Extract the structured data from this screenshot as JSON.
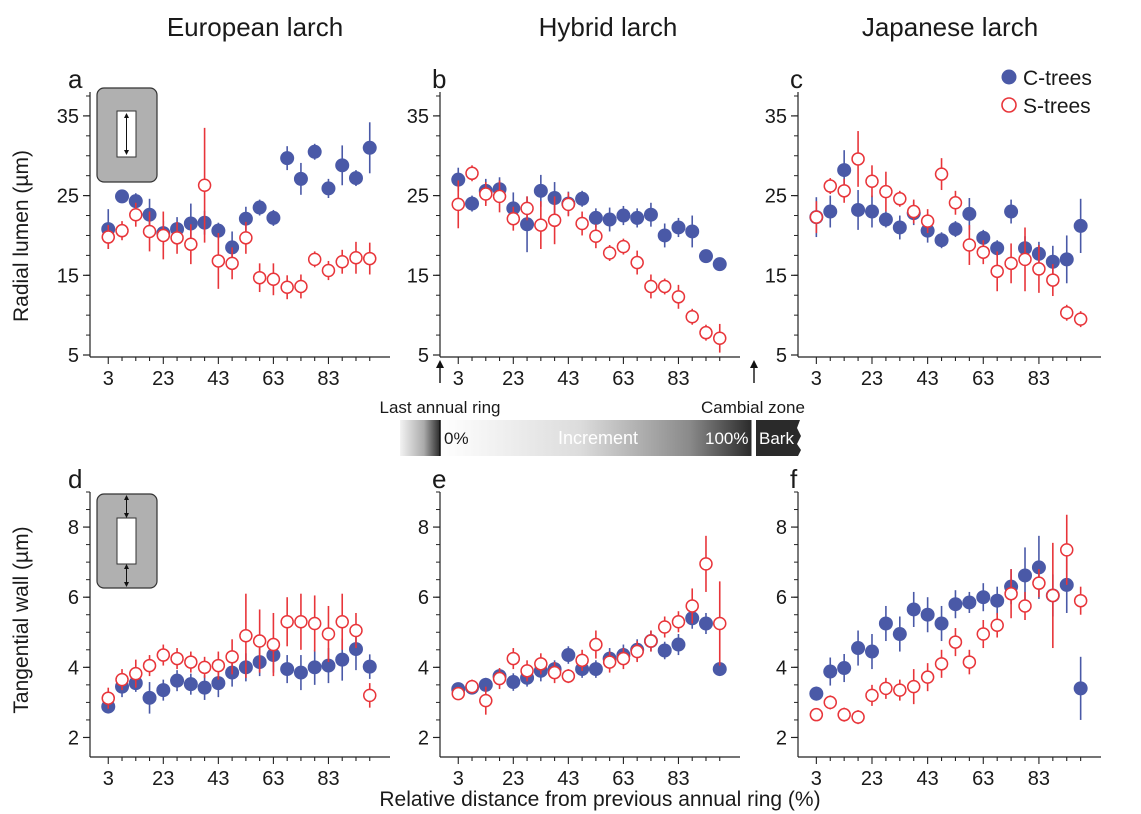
{
  "figure": {
    "column_titles": [
      "European larch",
      "Hybrid larch",
      "Japanese larch"
    ],
    "panel_letters": [
      "a",
      "b",
      "c",
      "d",
      "e",
      "f"
    ],
    "row_labels": [
      "Radial lumen  (µm)",
      "Tangential wall  (µm)"
    ],
    "x_axis_label": "Relative distance from previous annual ring (%)",
    "legend": [
      {
        "label": "C-trees",
        "marker": "filled-circle",
        "color": "#4a59a7"
      },
      {
        "label": "S-trees",
        "marker": "open-circle",
        "color": "#e8353a"
      }
    ],
    "schematic": {
      "left_label": "Last annual ring",
      "right_label": "Cambial zone",
      "start_label": "0%",
      "mid_label": "Increment",
      "end_label": "100%",
      "bark_label": "Bark"
    }
  },
  "colors": {
    "c_trees": "#4a59a7",
    "s_trees": "#e8353a",
    "axis": "#222222"
  },
  "chart_data": [
    {
      "type": "scatter",
      "panel": "a",
      "title": "European larch",
      "ylabel": "Radial lumen  (µm)",
      "xlabel": "Relative distance from previous annual ring (%)",
      "ylim": [
        5,
        38
      ],
      "yticks": [
        5,
        15,
        25,
        35
      ],
      "xticks": [
        3,
        23,
        43,
        63,
        83
      ],
      "xlim": [
        0,
        101
      ],
      "series": [
        {
          "name": "C-trees",
          "x": [
            3,
            8,
            13,
            18,
            23,
            28,
            33,
            38,
            43,
            48,
            53,
            58,
            63,
            68,
            73,
            78,
            83,
            88,
            93,
            98
          ],
          "y": [
            20.8,
            24.9,
            24.3,
            22.6,
            20.3,
            20.8,
            21.5,
            21.6,
            20.6,
            18.5,
            22.1,
            23.5,
            22.2,
            29.7,
            27.1,
            30.5,
            25.9,
            28.8,
            27.2,
            31.0
          ],
          "err": [
            2.5,
            0.8,
            1.0,
            2.0,
            1.5,
            1.5,
            2.5,
            1.5,
            1.0,
            2.0,
            1.5,
            1.0,
            1.0,
            1.5,
            2.0,
            1.0,
            1.2,
            2.5,
            1.0,
            3.2
          ]
        },
        {
          "name": "S-trees",
          "x": [
            3,
            8,
            13,
            18,
            23,
            28,
            33,
            38,
            43,
            48,
            53,
            58,
            63,
            68,
            73,
            78,
            83,
            88,
            93,
            98
          ],
          "y": [
            19.8,
            20.6,
            22.6,
            20.5,
            20.0,
            19.7,
            18.9,
            26.3,
            16.8,
            16.5,
            19.7,
            14.7,
            14.5,
            13.5,
            13.6,
            17.0,
            15.6,
            16.7,
            17.2,
            17.1
          ],
          "err": [
            1.5,
            1.2,
            1.5,
            2.5,
            3.0,
            2.0,
            2.5,
            7.2,
            3.5,
            2.0,
            2.0,
            1.8,
            2.0,
            1.5,
            1.5,
            1.0,
            1.2,
            1.5,
            2.0,
            2.0
          ]
        }
      ]
    },
    {
      "type": "scatter",
      "panel": "b",
      "title": "Hybrid larch",
      "ylabel": "",
      "xlabel": "Relative distance from previous annual ring (%)",
      "ylim": [
        5,
        38
      ],
      "yticks": [
        5,
        15,
        25,
        35
      ],
      "xticks": [
        3,
        23,
        43,
        63,
        83
      ],
      "xlim": [
        0,
        101
      ],
      "series": [
        {
          "name": "C-trees",
          "x": [
            3,
            8,
            13,
            18,
            23,
            28,
            33,
            38,
            43,
            48,
            53,
            58,
            63,
            68,
            73,
            78,
            83,
            88,
            93,
            98
          ],
          "y": [
            27.0,
            24.0,
            25.6,
            25.8,
            23.4,
            21.4,
            25.6,
            24.7,
            24.0,
            24.6,
            22.2,
            22.0,
            22.5,
            22.2,
            22.6,
            20.0,
            21.0,
            20.5,
            17.4,
            16.4
          ],
          "err": [
            1.5,
            1.0,
            1.5,
            1.5,
            2.0,
            3.5,
            2.0,
            2.0,
            1.5,
            1.0,
            1.2,
            1.5,
            1.2,
            1.2,
            1.5,
            1.5,
            1.2,
            2.0,
            0.6,
            0.6
          ]
        },
        {
          "name": "S-trees",
          "x": [
            3,
            8,
            13,
            18,
            23,
            28,
            33,
            38,
            43,
            48,
            53,
            58,
            63,
            68,
            73,
            78,
            83,
            88,
            93,
            98
          ],
          "y": [
            23.9,
            27.8,
            25.2,
            24.9,
            22.1,
            23.4,
            21.3,
            21.9,
            23.9,
            21.5,
            19.9,
            17.8,
            18.6,
            16.6,
            13.6,
            13.6,
            12.3,
            9.8,
            7.8,
            7.1
          ],
          "err": [
            3.0,
            1.0,
            1.5,
            2.0,
            1.5,
            1.5,
            3.0,
            3.0,
            1.5,
            1.5,
            1.5,
            1.0,
            1.0,
            1.5,
            1.5,
            1.0,
            1.5,
            1.0,
            1.0,
            1.8
          ]
        }
      ]
    },
    {
      "type": "scatter",
      "panel": "c",
      "title": "Japanese larch",
      "ylabel": "",
      "xlabel": "Relative distance from previous annual ring (%)",
      "ylim": [
        5,
        38
      ],
      "yticks": [
        5,
        15,
        25,
        35
      ],
      "xticks": [
        3,
        23,
        43,
        63,
        83
      ],
      "xlim": [
        0,
        101
      ],
      "series": [
        {
          "name": "C-trees",
          "x": [
            3,
            8,
            13,
            18,
            23,
            28,
            33,
            38,
            43,
            48,
            53,
            58,
            63,
            68,
            73,
            78,
            83,
            88,
            93,
            98
          ],
          "y": [
            22.3,
            23.0,
            28.2,
            23.2,
            23.0,
            22.0,
            21.0,
            22.8,
            20.6,
            19.4,
            20.8,
            22.7,
            19.7,
            18.4,
            23.0,
            18.4,
            17.7,
            16.7,
            17.0,
            21.2
          ],
          "err": [
            2.5,
            2.0,
            2.5,
            2.5,
            2.0,
            1.0,
            1.5,
            1.5,
            1.5,
            1.0,
            1.0,
            2.0,
            1.0,
            1.0,
            1.5,
            1.5,
            1.5,
            2.0,
            3.0,
            3.4
          ]
        },
        {
          "name": "S-trees",
          "x": [
            3,
            8,
            13,
            18,
            23,
            28,
            33,
            38,
            43,
            48,
            53,
            58,
            63,
            68,
            73,
            78,
            83,
            88,
            93,
            98
          ],
          "y": [
            22.3,
            26.2,
            25.6,
            29.6,
            26.8,
            25.5,
            24.6,
            23.0,
            21.8,
            27.7,
            24.1,
            18.8,
            17.9,
            15.5,
            16.5,
            17.0,
            15.8,
            14.4,
            10.3,
            9.5
          ],
          "err": [
            2.0,
            1.0,
            1.5,
            3.5,
            2.0,
            2.5,
            1.0,
            1.5,
            1.5,
            2.0,
            1.5,
            2.5,
            1.5,
            2.5,
            2.5,
            4.0,
            3.0,
            2.0,
            1.0,
            1.0
          ]
        }
      ]
    },
    {
      "type": "scatter",
      "panel": "d",
      "title": "European larch",
      "ylabel": "Tangential wall  (µm)",
      "xlabel": "Relative distance from previous annual ring (%)",
      "ylim": [
        1.5,
        9.0
      ],
      "yticks": [
        2,
        4,
        6,
        8
      ],
      "xticks": [
        3,
        23,
        43,
        63,
        83
      ],
      "xlim": [
        0,
        101
      ],
      "series": [
        {
          "name": "C-trees",
          "x": [
            3,
            8,
            13,
            18,
            23,
            28,
            33,
            38,
            43,
            48,
            53,
            58,
            63,
            68,
            73,
            78,
            83,
            88,
            93,
            98
          ],
          "y": [
            2.88,
            3.45,
            3.55,
            3.13,
            3.35,
            3.62,
            3.52,
            3.42,
            3.55,
            3.85,
            4.0,
            4.15,
            4.35,
            3.95,
            3.85,
            4.0,
            4.05,
            4.22,
            4.52,
            4.02
          ],
          "err": [
            0.1,
            0.3,
            0.25,
            0.45,
            0.3,
            0.3,
            0.3,
            0.35,
            0.4,
            0.4,
            0.4,
            0.4,
            0.5,
            0.4,
            0.5,
            0.5,
            0.5,
            0.6,
            0.6,
            0.35
          ]
        },
        {
          "name": "S-trees",
          "x": [
            3,
            8,
            13,
            18,
            23,
            28,
            33,
            38,
            43,
            48,
            53,
            58,
            63,
            68,
            73,
            78,
            83,
            88,
            93,
            98
          ],
          "y": [
            3.12,
            3.65,
            3.82,
            4.05,
            4.35,
            4.25,
            4.15,
            4.0,
            4.05,
            4.3,
            4.9,
            4.75,
            4.65,
            5.3,
            5.3,
            5.25,
            4.95,
            5.3,
            5.05,
            3.2
          ],
          "err": [
            0.3,
            0.3,
            0.4,
            0.3,
            0.3,
            0.3,
            0.3,
            0.3,
            0.4,
            0.5,
            1.2,
            0.9,
            0.9,
            0.7,
            0.8,
            0.8,
            0.8,
            0.8,
            0.5,
            0.35
          ]
        }
      ]
    },
    {
      "type": "scatter",
      "panel": "e",
      "title": "Hybrid larch",
      "ylabel": "",
      "xlabel": "Relative distance from previous annual ring (%)",
      "ylim": [
        1.5,
        9.0
      ],
      "yticks": [
        2,
        4,
        6,
        8
      ],
      "xticks": [
        3,
        23,
        43,
        63,
        83
      ],
      "xlim": [
        0,
        101
      ],
      "series": [
        {
          "name": "C-trees",
          "x": [
            3,
            8,
            13,
            18,
            23,
            28,
            33,
            38,
            43,
            48,
            53,
            58,
            63,
            68,
            73,
            78,
            83,
            88,
            93,
            98
          ],
          "y": [
            3.38,
            3.42,
            3.5,
            3.75,
            3.58,
            3.7,
            3.9,
            3.95,
            4.35,
            3.95,
            3.95,
            4.25,
            4.35,
            4.5,
            4.75,
            4.48,
            4.65,
            5.4,
            5.25,
            3.95
          ],
          "err": [
            0.1,
            0.1,
            0.2,
            0.2,
            0.25,
            0.25,
            0.3,
            0.25,
            0.25,
            0.25,
            0.25,
            0.3,
            0.3,
            0.3,
            0.3,
            0.25,
            0.3,
            0.3,
            0.3,
            0.15
          ]
        },
        {
          "name": "S-trees",
          "x": [
            3,
            8,
            13,
            18,
            23,
            28,
            33,
            38,
            43,
            48,
            53,
            58,
            63,
            68,
            73,
            78,
            83,
            88,
            93,
            98
          ],
          "y": [
            3.25,
            3.45,
            3.05,
            3.68,
            4.25,
            3.9,
            4.1,
            3.85,
            3.75,
            4.2,
            4.65,
            4.15,
            4.25,
            4.45,
            4.75,
            5.15,
            5.3,
            5.75,
            6.95,
            5.25
          ],
          "err": [
            0.15,
            0.2,
            0.4,
            0.3,
            0.3,
            0.3,
            0.3,
            0.3,
            0.2,
            0.3,
            0.4,
            0.3,
            0.3,
            0.3,
            0.3,
            0.3,
            0.3,
            0.5,
            0.8,
            1.2
          ]
        }
      ]
    },
    {
      "type": "scatter",
      "panel": "f",
      "title": "Japanese larch",
      "ylabel": "",
      "xlabel": "Relative distance from previous annual ring (%)",
      "ylim": [
        1.5,
        9.0
      ],
      "yticks": [
        2,
        4,
        6,
        8
      ],
      "xticks": [
        3,
        23,
        43,
        63,
        83
      ],
      "xlim": [
        0,
        101
      ],
      "series": [
        {
          "name": "C-trees",
          "x": [
            3,
            8,
            13,
            18,
            23,
            28,
            33,
            38,
            43,
            48,
            53,
            58,
            63,
            68,
            73,
            78,
            83,
            88,
            93,
            98
          ],
          "y": [
            3.25,
            3.88,
            3.98,
            4.55,
            4.45,
            5.25,
            4.95,
            5.65,
            5.5,
            5.25,
            5.8,
            5.85,
            6.0,
            5.9,
            6.3,
            6.62,
            6.85,
            6.05,
            6.35,
            3.4
          ],
          "err": [
            0.2,
            0.4,
            0.4,
            0.5,
            0.5,
            0.5,
            0.5,
            0.5,
            0.5,
            0.5,
            0.4,
            0.3,
            0.4,
            0.4,
            0.5,
            0.8,
            0.9,
            0.6,
            0.8,
            0.9
          ]
        },
        {
          "name": "S-trees",
          "x": [
            3,
            8,
            13,
            18,
            23,
            28,
            33,
            38,
            43,
            48,
            53,
            58,
            63,
            68,
            73,
            78,
            83,
            88,
            93,
            98
          ],
          "y": [
            2.65,
            3.0,
            2.65,
            2.58,
            3.2,
            3.4,
            3.35,
            3.45,
            3.72,
            4.1,
            4.72,
            4.15,
            4.95,
            5.2,
            6.1,
            5.75,
            6.4,
            6.05,
            7.35,
            5.9
          ],
          "err": [
            0.1,
            0.2,
            0.2,
            0.2,
            0.3,
            0.3,
            0.3,
            0.5,
            0.4,
            0.4,
            0.4,
            0.35,
            0.4,
            0.35,
            0.7,
            0.4,
            0.4,
            1.5,
            1.0,
            0.4
          ]
        }
      ]
    }
  ]
}
